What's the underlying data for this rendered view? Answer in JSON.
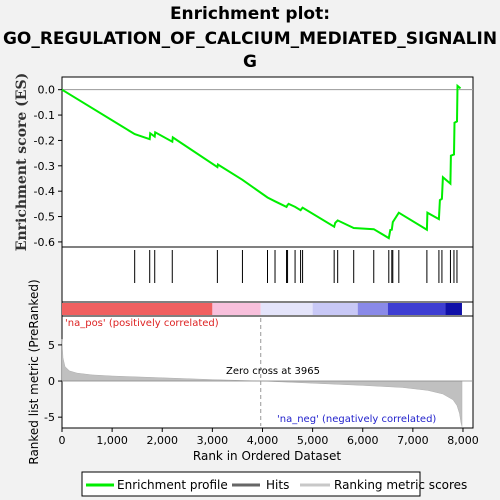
{
  "title_lines": [
    "Enrichment plot:",
    "GO_REGULATION_OF_CALCIUM_MEDIATED_SIGNALIN",
    "G"
  ],
  "chart_data": {
    "type": "line",
    "es_panel": {
      "ylabel": "Enrichment score (ES)",
      "ylim": [
        -0.62,
        0.05
      ],
      "yticks": [
        0.0,
        -0.1,
        -0.2,
        -0.3,
        -0.4,
        -0.5,
        -0.6
      ],
      "ytick_labels": [
        "0.0",
        "-0.1",
        "-0.2",
        "-0.3",
        "-0.4",
        "-0.5",
        "-0.6"
      ],
      "line_color": "#00ee00",
      "x": [
        0,
        1450,
        1750,
        1760,
        1850,
        1860,
        2200,
        2210,
        3100,
        3110,
        3600,
        4100,
        4250,
        4480,
        4500,
        4520,
        4650,
        4760,
        4780,
        4800,
        5430,
        5450,
        5500,
        5820,
        6220,
        6520,
        6550,
        6580,
        6600,
        6720,
        7280,
        7290,
        7520,
        7540,
        7580,
        7600,
        7750,
        7760,
        7820,
        7830,
        7880,
        7890,
        7950
      ],
      "y": [
        0.0,
        -0.175,
        -0.195,
        -0.172,
        -0.185,
        -0.168,
        -0.205,
        -0.188,
        -0.305,
        -0.295,
        -0.355,
        -0.425,
        -0.44,
        -0.462,
        -0.455,
        -0.45,
        -0.462,
        -0.475,
        -0.47,
        -0.465,
        -0.54,
        -0.525,
        -0.515,
        -0.545,
        -0.55,
        -0.585,
        -0.553,
        -0.552,
        -0.522,
        -0.485,
        -0.552,
        -0.485,
        -0.51,
        -0.435,
        -0.43,
        -0.345,
        -0.37,
        -0.26,
        -0.255,
        -0.13,
        -0.125,
        0.015,
        0.005
      ]
    },
    "hits": [
      1450,
      1750,
      1850,
      2200,
      3100,
      3600,
      4100,
      4250,
      4480,
      4500,
      4650,
      4760,
      4800,
      5430,
      5500,
      5820,
      6220,
      6520,
      6580,
      6600,
      6720,
      7280,
      7520,
      7580,
      7750,
      7820,
      7880
    ],
    "rank_panel": {
      "ylabel": "Ranked list metric (PreRanked)",
      "ylim": [
        -6.5,
        9
      ],
      "yticks": [
        5,
        0,
        -5
      ],
      "ytick_labels": [
        "5",
        "0",
        "-5"
      ],
      "zero_cross": 3965,
      "zero_cross_label": "Zero cross at 3965",
      "pos_label": "'na_pos' (positively correlated)",
      "neg_label": "'na_neg' (negatively correlated)",
      "metric_profile_x": [
        0,
        20,
        60,
        150,
        300,
        600,
        1000,
        2000,
        3000,
        3965,
        5000,
        6000,
        6800,
        7300,
        7600,
        7800,
        7880,
        7930,
        7960,
        7980
      ],
      "metric_profile_y": [
        5.8,
        3.2,
        2.0,
        1.4,
        1.1,
        0.85,
        0.7,
        0.45,
        0.2,
        0.0,
        -0.3,
        -0.6,
        -0.9,
        -1.3,
        -1.8,
        -2.6,
        -3.4,
        -4.5,
        -5.8,
        -6.3
      ]
    },
    "xaxis": {
      "label": "Rank in Ordered Dataset",
      "xlim": [
        0,
        8200
      ],
      "ticks": [
        0,
        1000,
        2000,
        3000,
        4000,
        5000,
        6000,
        7000,
        8000
      ],
      "tick_labels": [
        "0",
        "1,000",
        "2,000",
        "3,000",
        "4,000",
        "5,000",
        "6,000",
        "7,000",
        "8,000"
      ]
    },
    "colorbar": {
      "x_end": 7980,
      "segments": [
        {
          "from": 0,
          "to": 3000,
          "color": "#f06060"
        },
        {
          "from": 3000,
          "to": 3965,
          "color": "#f8c0dc"
        },
        {
          "from": 3965,
          "to": 5000,
          "color": "#e4e4fa"
        },
        {
          "from": 5000,
          "to": 5900,
          "color": "#c8c8f6"
        },
        {
          "from": 5900,
          "to": 6500,
          "color": "#8a8ae8"
        },
        {
          "from": 6500,
          "to": 7650,
          "color": "#3e3ed2"
        },
        {
          "from": 7650,
          "to": 7980,
          "color": "#1010a8"
        }
      ]
    },
    "legend": {
      "entries": [
        "Enrichment profile",
        "Hits",
        "Ranking metric scores"
      ],
      "colors": [
        "#00ee00",
        "#000000",
        "#c8c8c8"
      ]
    }
  }
}
